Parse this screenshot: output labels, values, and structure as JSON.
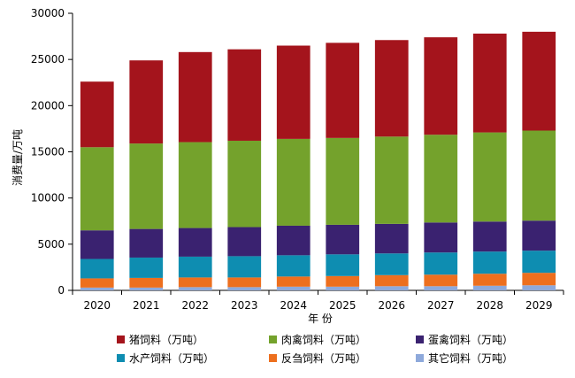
{
  "chart_data": {
    "type": "bar",
    "stacked": true,
    "xlabel": "年 份",
    "ylabel": "消费量/万吨",
    "ylim": [
      0,
      30000
    ],
    "yticks": [
      0,
      5000,
      10000,
      15000,
      20000,
      25000,
      30000
    ],
    "grid": false,
    "legend_position": "bottom",
    "categories": [
      "2020",
      "2021",
      "2022",
      "2023",
      "2024",
      "2025",
      "2026",
      "2027",
      "2028",
      "2029"
    ],
    "series": [
      {
        "name": "其它饲料（万吨）",
        "color": "#8ea9db",
        "values": [
          300,
          300,
          350,
          350,
          400,
          400,
          450,
          450,
          500,
          550
        ]
      },
      {
        "name": "反刍饲料（万吨）",
        "color": "#ed6f1e",
        "values": [
          1000,
          1050,
          1050,
          1050,
          1100,
          1150,
          1200,
          1250,
          1300,
          1350
        ]
      },
      {
        "name": "水产饲料（万吨）",
        "color": "#0e8db1",
        "values": [
          2100,
          2200,
          2250,
          2300,
          2300,
          2350,
          2350,
          2400,
          2400,
          2400
        ]
      },
      {
        "name": "蛋禽饲料（万吨）",
        "color": "#3a2270",
        "values": [
          3100,
          3100,
          3100,
          3150,
          3200,
          3200,
          3200,
          3250,
          3250,
          3250
        ]
      },
      {
        "name": "肉禽饲料（万吨）",
        "color": "#74a22c",
        "values": [
          9000,
          9250,
          9300,
          9350,
          9400,
          9400,
          9450,
          9500,
          9650,
          9750
        ]
      },
      {
        "name": "猪饲料（万吨）",
        "color": "#a4141c",
        "values": [
          7100,
          9000,
          9750,
          9900,
          10100,
          10300,
          10450,
          10550,
          10700,
          10700
        ]
      }
    ],
    "legend_order": [
      5,
      4,
      3,
      2,
      1,
      0
    ]
  }
}
